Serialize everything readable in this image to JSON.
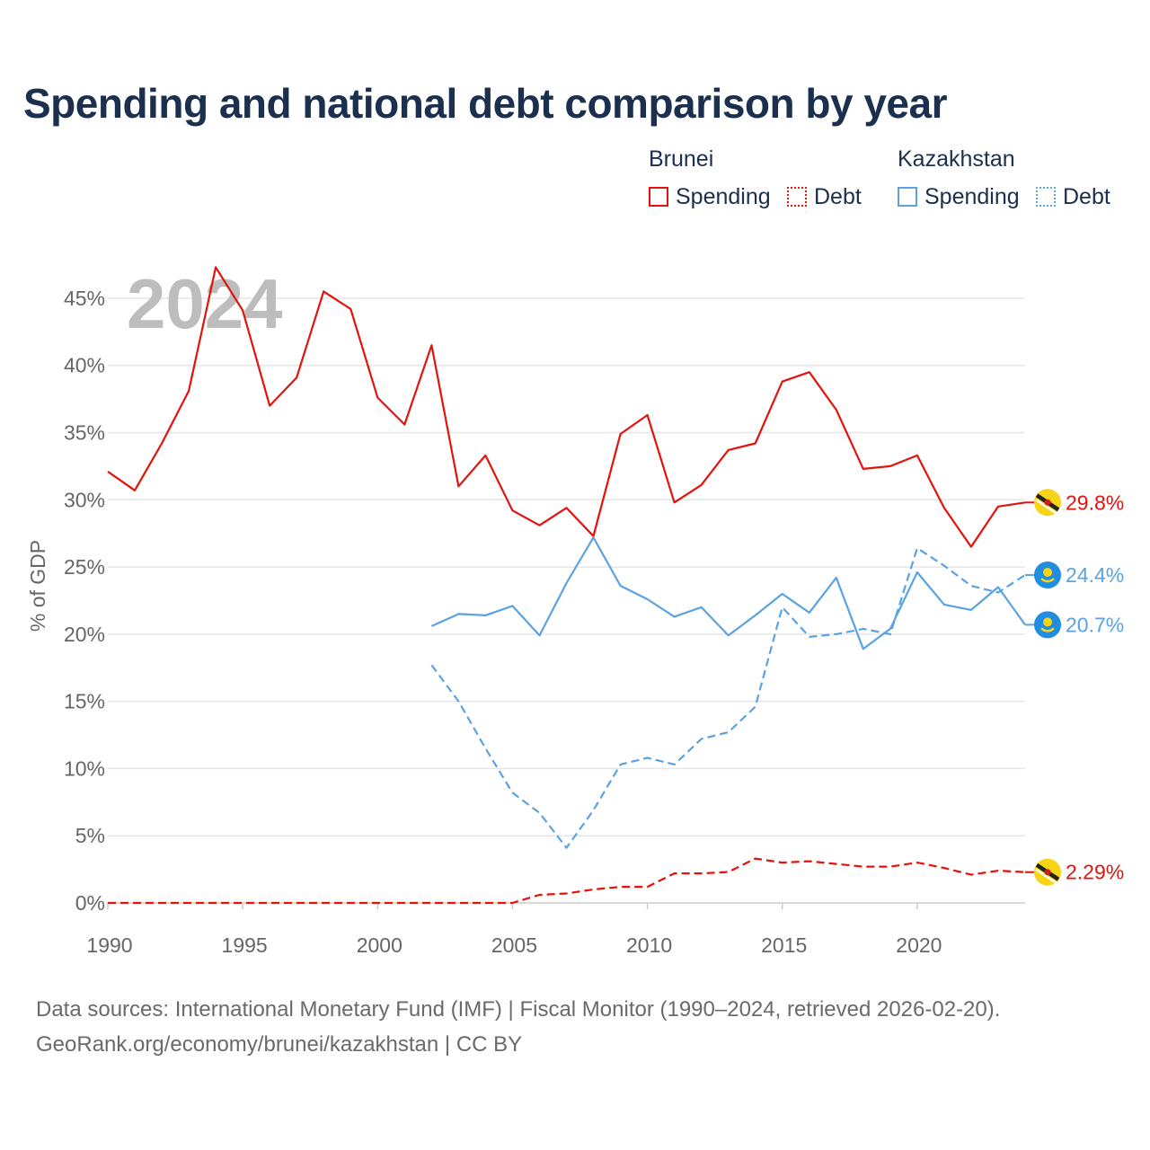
{
  "chart_data": {
    "type": "line",
    "title": "Spending and national debt comparison by year",
    "year_label": "2024",
    "ylabel": "% of GDP",
    "xlabel": "",
    "xlim": [
      1990,
      2024
    ],
    "ylim": [
      0,
      47
    ],
    "x_ticks": [
      1990,
      1995,
      2000,
      2005,
      2010,
      2015,
      2020
    ],
    "y_ticks": [
      0,
      5,
      10,
      15,
      20,
      25,
      30,
      35,
      40,
      45
    ],
    "y_tick_labels": [
      "0%",
      "5%",
      "10%",
      "15%",
      "20%",
      "25%",
      "30%",
      "35%",
      "40%",
      "45%"
    ],
    "legend": {
      "groups": [
        {
          "country": "Brunei",
          "color": "#e3120b",
          "items": [
            {
              "label": "Spending",
              "style": "solid"
            },
            {
              "label": "Debt",
              "style": "dotted"
            }
          ]
        },
        {
          "country": "Kazakhstan",
          "color": "#5aa2e2",
          "items": [
            {
              "label": "Spending",
              "style": "solid"
            },
            {
              "label": "Debt",
              "style": "dotted"
            }
          ]
        }
      ]
    },
    "series": [
      {
        "name": "Brunei Spending",
        "country": "Brunei",
        "metric": "Spending",
        "color": "#e3120b",
        "dash": false,
        "x": [
          1990,
          1991,
          1992,
          1993,
          1994,
          1995,
          1996,
          1997,
          1998,
          1999,
          2000,
          2001,
          2002,
          2003,
          2004,
          2005,
          2006,
          2007,
          2008,
          2009,
          2010,
          2011,
          2012,
          2013,
          2014,
          2015,
          2016,
          2017,
          2018,
          2019,
          2020,
          2021,
          2022,
          2023,
          2024
        ],
        "values": [
          32.1,
          30.7,
          34.2,
          38.1,
          47.3,
          44.1,
          37.0,
          39.1,
          45.5,
          44.2,
          37.6,
          35.6,
          41.5,
          31.0,
          33.3,
          29.2,
          28.1,
          29.4,
          27.3,
          34.9,
          36.3,
          29.8,
          31.1,
          33.7,
          34.2,
          38.8,
          39.5,
          36.7,
          32.3,
          32.5,
          33.3,
          29.4,
          26.5,
          29.5,
          29.8
        ],
        "end_label": "29.8%",
        "flag": "brunei"
      },
      {
        "name": "Brunei Debt",
        "country": "Brunei",
        "metric": "Debt",
        "color": "#e3120b",
        "dash": true,
        "x": [
          1990,
          1991,
          1992,
          1993,
          1994,
          1995,
          1996,
          1997,
          1998,
          1999,
          2000,
          2001,
          2002,
          2003,
          2004,
          2005,
          2006,
          2007,
          2008,
          2009,
          2010,
          2011,
          2012,
          2013,
          2014,
          2015,
          2016,
          2017,
          2018,
          2019,
          2020,
          2021,
          2022,
          2023,
          2024
        ],
        "values": [
          0,
          0,
          0,
          0,
          0,
          0,
          0,
          0,
          0,
          0,
          0,
          0,
          0,
          0,
          0,
          0,
          0.6,
          0.7,
          1.0,
          1.2,
          1.2,
          2.2,
          2.2,
          2.3,
          3.3,
          3.0,
          3.1,
          2.9,
          2.7,
          2.7,
          3.0,
          2.6,
          2.1,
          2.4,
          2.29
        ],
        "end_label": "2.29%",
        "flag": "brunei"
      },
      {
        "name": "Kazakhstan Spending",
        "country": "Kazakhstan",
        "metric": "Spending",
        "color": "#5aa2e2",
        "dash": false,
        "x": [
          2002,
          2003,
          2004,
          2005,
          2006,
          2007,
          2008,
          2009,
          2010,
          2011,
          2012,
          2013,
          2014,
          2015,
          2016,
          2017,
          2018,
          2019,
          2020,
          2021,
          2022,
          2023,
          2024
        ],
        "values": [
          20.6,
          21.5,
          21.4,
          22.1,
          19.9,
          23.8,
          27.2,
          23.6,
          22.6,
          21.3,
          22.0,
          19.9,
          21.4,
          23.0,
          21.6,
          24.2,
          18.9,
          20.4,
          24.6,
          22.2,
          21.8,
          23.5,
          20.7
        ],
        "end_label": "20.7%",
        "flag": "kazakhstan"
      },
      {
        "name": "Kazakhstan Debt",
        "country": "Kazakhstan",
        "metric": "Debt",
        "color": "#5aa2e2",
        "dash": true,
        "x": [
          2002,
          2003,
          2004,
          2005,
          2006,
          2007,
          2008,
          2009,
          2010,
          2011,
          2012,
          2013,
          2014,
          2015,
          2016,
          2017,
          2018,
          2019,
          2020,
          2021,
          2022,
          2023,
          2024
        ],
        "values": [
          17.7,
          15.0,
          11.5,
          8.2,
          6.7,
          4.1,
          6.9,
          10.3,
          10.8,
          10.3,
          12.2,
          12.7,
          14.6,
          22.0,
          19.8,
          20.0,
          20.4,
          20.0,
          26.4,
          25.1,
          23.6,
          23.1,
          24.4
        ],
        "end_label": "24.4%",
        "flag": "kazakhstan"
      }
    ]
  },
  "source": {
    "line1": "Data sources: International Monetary Fund (IMF) | Fiscal Monitor (1990–2024, retrieved 2026-02-20).",
    "line2": "GeoRank.org/economy/brunei/kazakhstan | CC BY"
  }
}
